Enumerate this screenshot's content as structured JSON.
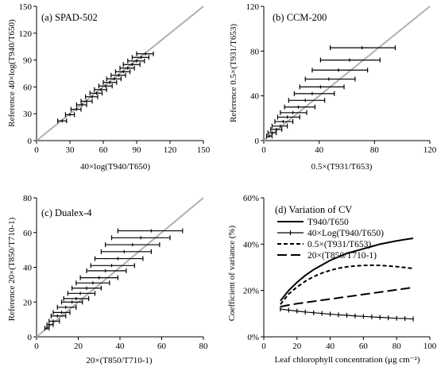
{
  "chart_data": [
    {
      "type": "scatter",
      "title": "(a) SPAD-502",
      "xlabel": "40×log(T940/T650)",
      "ylabel": "Reference  40×log(T940/T650)",
      "xlim": [
        0,
        150
      ],
      "ylim": [
        0,
        150
      ],
      "xticks": [
        "0",
        "30",
        "60",
        "90",
        "120",
        "150"
      ],
      "yticks": [
        "0",
        "30",
        "60",
        "90",
        "120",
        "150"
      ],
      "reference_line": "1:1",
      "points": [
        {
          "y": 22,
          "x": 23,
          "xl": 19,
          "xh": 27
        },
        {
          "y": 29,
          "x": 30,
          "xl": 26,
          "xh": 34
        },
        {
          "y": 35,
          "x": 36,
          "xl": 31,
          "xh": 40
        },
        {
          "y": 40,
          "x": 41,
          "xl": 36,
          "xh": 45
        },
        {
          "y": 44,
          "x": 45,
          "xl": 40,
          "xh": 50
        },
        {
          "y": 49,
          "x": 50,
          "xl": 44,
          "xh": 55
        },
        {
          "y": 53,
          "x": 54,
          "xl": 48,
          "xh": 59
        },
        {
          "y": 57,
          "x": 58,
          "xl": 52,
          "xh": 63
        },
        {
          "y": 61,
          "x": 62,
          "xl": 56,
          "xh": 68
        },
        {
          "y": 65,
          "x": 66,
          "xl": 60,
          "xh": 72
        },
        {
          "y": 69,
          "x": 70,
          "xl": 63,
          "xh": 76
        },
        {
          "y": 73,
          "x": 74,
          "xl": 67,
          "xh": 80
        },
        {
          "y": 77,
          "x": 78,
          "xl": 71,
          "xh": 84
        },
        {
          "y": 81,
          "x": 82,
          "xl": 75,
          "xh": 88
        },
        {
          "y": 85,
          "x": 86,
          "xl": 78,
          "xh": 93
        },
        {
          "y": 89,
          "x": 90,
          "xl": 82,
          "xh": 97
        },
        {
          "y": 93,
          "x": 94,
          "xl": 86,
          "xh": 101
        },
        {
          "y": 97,
          "x": 98,
          "xl": 90,
          "xh": 105
        }
      ]
    },
    {
      "type": "scatter",
      "title": "(b) CCM-200",
      "xlabel": "0.5×(T931/T653)",
      "ylabel": "Reference 0.5×(T931/T653)",
      "xlim": [
        0,
        120
      ],
      "ylim": [
        0,
        120
      ],
      "xticks": [
        "0",
        "40",
        "80",
        "120"
      ],
      "yticks": [
        "0",
        "40",
        "80",
        "120"
      ],
      "reference_line": "1:1",
      "points": [
        {
          "y": 4,
          "x": 4,
          "xl": 2,
          "xh": 6
        },
        {
          "y": 7,
          "x": 6,
          "xl": 3,
          "xh": 9
        },
        {
          "y": 10,
          "x": 9,
          "xl": 5,
          "xh": 13
        },
        {
          "y": 13,
          "x": 12,
          "xl": 6,
          "xh": 17
        },
        {
          "y": 17,
          "x": 14,
          "xl": 8,
          "xh": 21
        },
        {
          "y": 21,
          "x": 17,
          "xl": 10,
          "xh": 26
        },
        {
          "y": 25,
          "x": 21,
          "xl": 12,
          "xh": 31
        },
        {
          "y": 30,
          "x": 25,
          "xl": 15,
          "xh": 37
        },
        {
          "y": 36,
          "x": 30,
          "xl": 18,
          "xh": 44
        },
        {
          "y": 42,
          "x": 35,
          "xl": 22,
          "xh": 51
        },
        {
          "y": 48,
          "x": 41,
          "xl": 26,
          "xh": 58
        },
        {
          "y": 55,
          "x": 47,
          "xl": 30,
          "xh": 66
        },
        {
          "y": 63,
          "x": 54,
          "xl": 35,
          "xh": 75
        },
        {
          "y": 72,
          "x": 62,
          "xl": 41,
          "xh": 84
        },
        {
          "y": 83,
          "x": 71,
          "xl": 48,
          "xh": 95
        }
      ]
    },
    {
      "type": "scatter",
      "title": "(c) Dualex-4",
      "xlabel": "20×(T850/T710-1)",
      "ylabel": "Reference 20×(T850/T710-1)",
      "xlim": [
        0,
        80
      ],
      "ylim": [
        0,
        80
      ],
      "xticks": [
        "0",
        "20",
        "40",
        "60",
        "80"
      ],
      "yticks": [
        "0",
        "20",
        "40",
        "60",
        "80"
      ],
      "reference_line": "1:1",
      "points": [
        {
          "y": 5,
          "x": 5,
          "xl": 4,
          "xh": 6
        },
        {
          "y": 7,
          "x": 6,
          "xl": 5,
          "xh": 8
        },
        {
          "y": 9,
          "x": 8,
          "xl": 6,
          "xh": 11
        },
        {
          "y": 12,
          "x": 10,
          "xl": 7,
          "xh": 14
        },
        {
          "y": 14,
          "x": 12,
          "xl": 8,
          "xh": 16
        },
        {
          "y": 17,
          "x": 14,
          "xl": 10,
          "xh": 19
        },
        {
          "y": 20,
          "x": 17,
          "xl": 12,
          "xh": 22
        },
        {
          "y": 22,
          "x": 19,
          "xl": 13,
          "xh": 25
        },
        {
          "y": 25,
          "x": 21,
          "xl": 15,
          "xh": 28
        },
        {
          "y": 28,
          "x": 24,
          "xl": 17,
          "xh": 31
        },
        {
          "y": 31,
          "x": 27,
          "xl": 19,
          "xh": 35
        },
        {
          "y": 34,
          "x": 30,
          "xl": 21,
          "xh": 39
        },
        {
          "y": 38,
          "x": 33,
          "xl": 24,
          "xh": 43
        },
        {
          "y": 41,
          "x": 36,
          "xl": 26,
          "xh": 47
        },
        {
          "y": 45,
          "x": 39,
          "xl": 28,
          "xh": 51
        },
        {
          "y": 49,
          "x": 42,
          "xl": 31,
          "xh": 55
        },
        {
          "y": 53,
          "x": 46,
          "xl": 33,
          "xh": 59
        },
        {
          "y": 57,
          "x": 50,
          "xl": 36,
          "xh": 64
        },
        {
          "y": 61,
          "x": 55,
          "xl": 39,
          "xh": 70
        }
      ]
    },
    {
      "type": "line",
      "title": "(d) Variation of CV",
      "xlabel": "Leaf chlorophyll concentration (μg cm⁻²)",
      "ylabel": "Coefficient of variance (%)",
      "xlim": [
        0,
        100
      ],
      "ylim": [
        0,
        60
      ],
      "xticks": [
        "0",
        "20",
        "40",
        "60",
        "80",
        "100"
      ],
      "yticks": [
        "0%",
        "20%",
        "40%",
        "60%"
      ],
      "x": [
        10,
        15,
        20,
        25,
        30,
        35,
        40,
        45,
        50,
        55,
        60,
        65,
        70,
        75,
        80,
        85,
        90
      ],
      "series": [
        {
          "name": "T940/T650",
          "style": "solid",
          "values": [
            15.5,
            20,
            23.5,
            26.5,
            29,
            31,
            33,
            34.5,
            36,
            37,
            38,
            39,
            40,
            40.7,
            41.4,
            42,
            42.5
          ]
        },
        {
          "name": "40×Log(T940/T650)",
          "style": "solid-tick",
          "values": [
            12,
            11.5,
            11.1,
            10.7,
            10.4,
            10.1,
            9.8,
            9.5,
            9.3,
            9.0,
            8.8,
            8.6,
            8.4,
            8.2,
            8.0,
            7.9,
            7.7
          ]
        },
        {
          "name": "0.5×(T931/T653)",
          "style": "short-dash",
          "values": [
            14,
            18.5,
            21.5,
            24,
            26,
            27.5,
            28.7,
            29.6,
            30.2,
            30.6,
            30.8,
            30.9,
            30.8,
            30.6,
            30.3,
            29.9,
            29.5
          ]
        },
        {
          "name": "20×(T850/T710-1)",
          "style": "long-dash",
          "values": [
            13,
            13.7,
            14.3,
            14.8,
            15.3,
            15.8,
            16.3,
            16.8,
            17.3,
            17.8,
            18.3,
            18.8,
            19.3,
            19.8,
            20.3,
            20.8,
            21.3
          ]
        }
      ],
      "legend": "top-left"
    }
  ]
}
